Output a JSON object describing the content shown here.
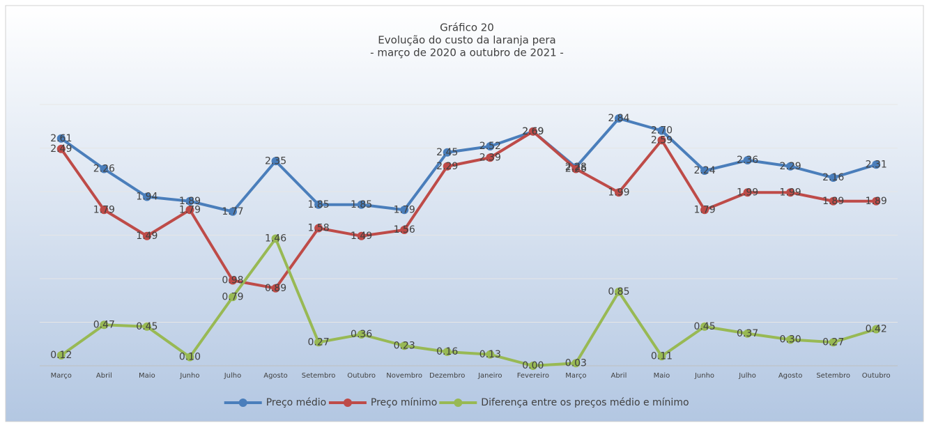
{
  "chart_data": {
    "type": "line",
    "title": [
      "Gráfico 20",
      "Evolução do custo da laranja pera",
      "- março de 2020 a outubro de 2021 -"
    ],
    "categories": [
      "Março",
      "Abril",
      "Maio",
      "Junho",
      "Julho",
      "Agosto",
      "Setembro",
      "Outubro",
      "Novembro",
      "Dezembro",
      "Janeiro",
      "Fevereiro",
      "Março",
      "Abril",
      "Maio",
      "Junho",
      "Julho",
      "Agosto",
      "Setembro",
      "Outubro"
    ],
    "series": [
      {
        "name": "Preço médio",
        "color": "#4a7ebb",
        "values": [
          2.61,
          2.26,
          1.94,
          1.89,
          1.77,
          2.35,
          1.85,
          1.85,
          1.79,
          2.45,
          2.52,
          2.69,
          2.28,
          2.84,
          2.7,
          2.24,
          2.36,
          2.29,
          2.16,
          2.31
        ],
        "value_labels": [
          "2.61",
          "2.26",
          "1.94",
          "1.89",
          "1.77",
          "2.35",
          "1.85",
          "1.85",
          "1.79",
          "2.45",
          "2.52",
          "2.69",
          "2.28",
          "2.84",
          "2.70",
          "2.24",
          "2.36",
          "2.29",
          "2.16",
          "2.31"
        ]
      },
      {
        "name": "Preço mínimo",
        "color": "#be4b48",
        "values": [
          2.49,
          1.79,
          1.49,
          1.79,
          0.98,
          0.89,
          1.58,
          1.49,
          1.56,
          2.29,
          2.39,
          2.69,
          2.26,
          1.99,
          2.59,
          1.79,
          1.99,
          1.99,
          1.89,
          1.89
        ],
        "value_labels": [
          "2.49",
          "1.79",
          "1.49",
          "1.79",
          "0.98",
          "0.89",
          "1.58",
          "1.49",
          "1.56",
          "2.29",
          "2.39",
          "2.69",
          "2.26",
          "1.99",
          "2.59",
          "1.79",
          "1.99",
          "1.99",
          "1.89",
          "1.89"
        ]
      },
      {
        "name": "Diferença entre os preços médio e mínimo",
        "color": "#98b954",
        "values": [
          0.12,
          0.47,
          0.45,
          0.1,
          0.79,
          1.46,
          0.27,
          0.36,
          0.23,
          0.16,
          0.13,
          0.0,
          0.03,
          0.85,
          0.11,
          0.45,
          0.37,
          0.3,
          0.27,
          0.42
        ],
        "value_labels": [
          "0.12",
          "0.47",
          "0.45",
          "0.10",
          "0.79",
          "1.46",
          "0.27",
          "0.36",
          "0.23",
          "0.16",
          "0.13",
          "0.00",
          "0.03",
          "0.85",
          "0.11",
          "0.45",
          "0.37",
          "0.30",
          "0.27",
          "0.42"
        ]
      }
    ],
    "ylim": [
      0,
      3
    ],
    "yticks": [
      0,
      0.5,
      1,
      1.5,
      2,
      2.5,
      3
    ],
    "grid": true,
    "legend": "bottom"
  }
}
